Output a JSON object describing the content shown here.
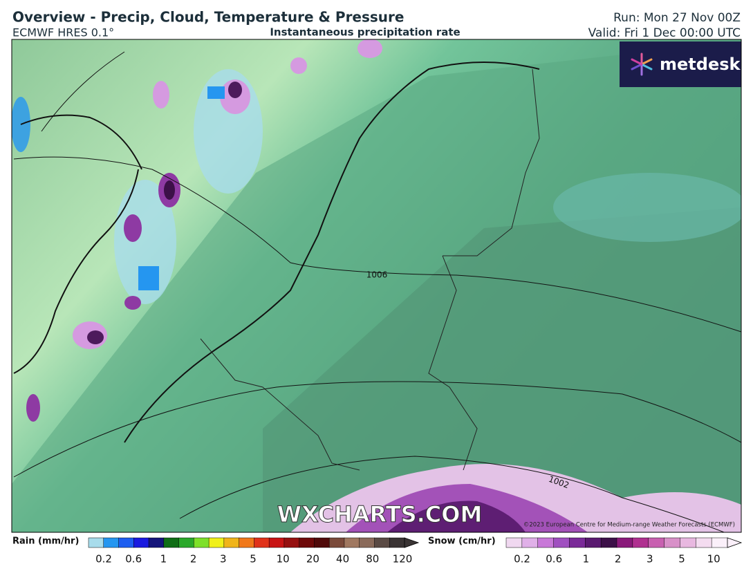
{
  "header": {
    "title": "Overview - Precip, Cloud, Temperature & Pressure",
    "model": "ECMWF HRES 0.1°",
    "field": "Instantaneous precipitation rate",
    "run": "Run: Mon 27 Nov 00Z",
    "valid": "Valid: Fri 1 Dec 00:00 UTC"
  },
  "map": {
    "isobar_labels": [
      "1006",
      "1002"
    ],
    "logo": "metdesk",
    "watermark": "WXCHARTS.COM",
    "copyright": "©2023 European Centre for Medium-range Weather Forecasts (ECMWF)"
  },
  "legend": {
    "rain": {
      "title": "Rain (mm/hr)",
      "labels": [
        "0.2",
        "0.6",
        "1",
        "2",
        "3",
        "5",
        "10",
        "20",
        "40",
        "80",
        "120"
      ]
    },
    "snow": {
      "title": "Snow (cm/hr)",
      "labels": [
        "0.2",
        "0.6",
        "1",
        "2",
        "3",
        "5",
        "10"
      ]
    }
  }
}
